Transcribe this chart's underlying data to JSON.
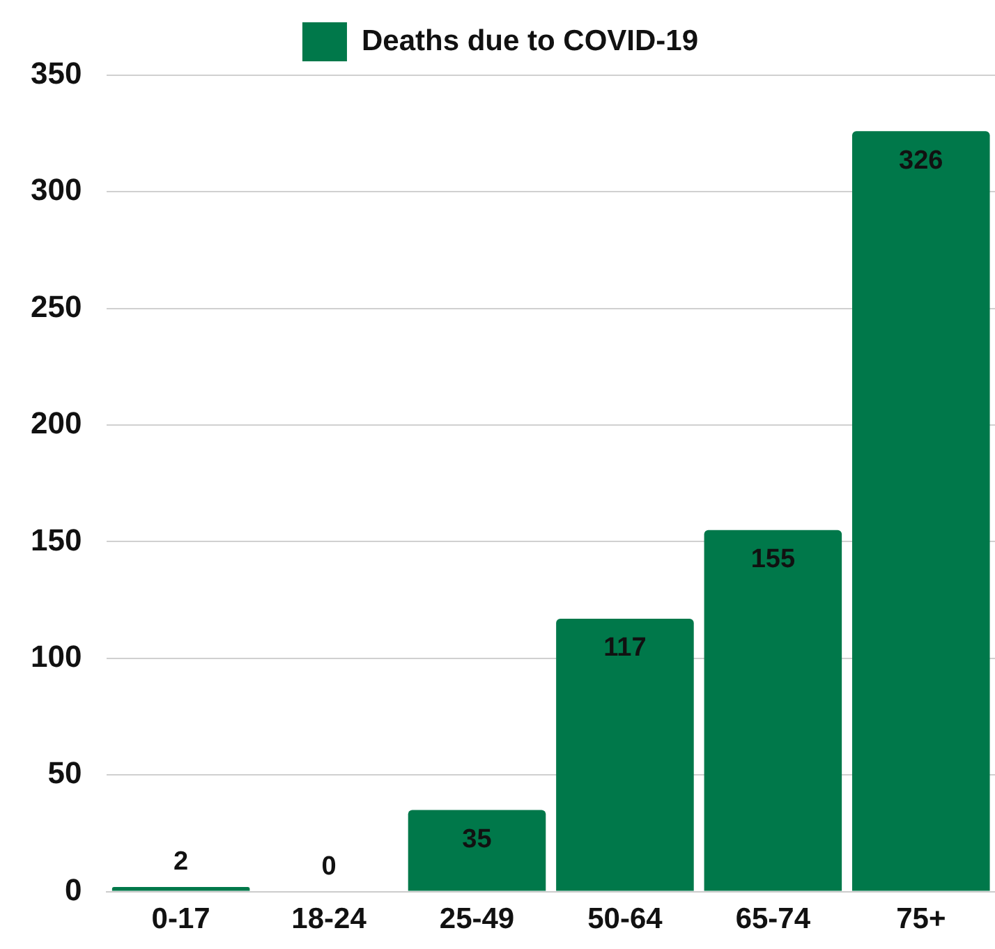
{
  "chart_data": {
    "type": "bar",
    "categories": [
      "0-17",
      "18-24",
      "25-49",
      "50-64",
      "65-74",
      "75+"
    ],
    "series": [
      {
        "name": "Deaths due to COVID-19",
        "color": "#00784a",
        "values": [
          2,
          0,
          35,
          117,
          155,
          326
        ]
      }
    ],
    "ylim": [
      0,
      350
    ],
    "yticks": [
      0,
      50,
      100,
      150,
      200,
      250,
      300,
      350
    ],
    "grid": "y",
    "legend": "top",
    "data_labels": true
  }
}
